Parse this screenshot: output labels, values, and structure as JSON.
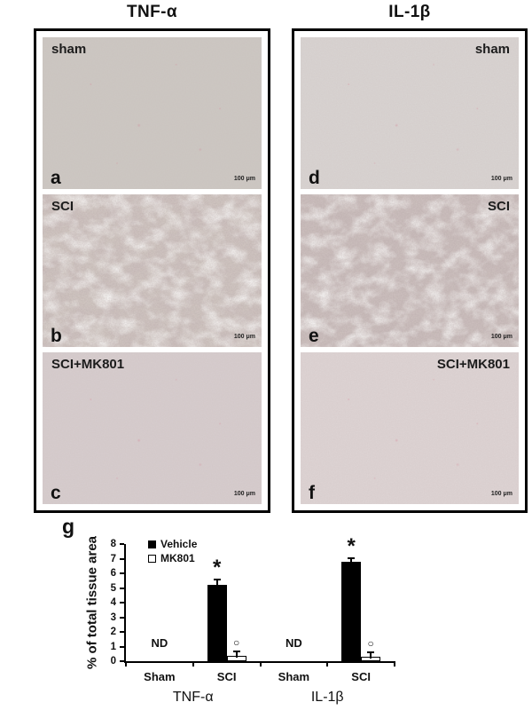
{
  "figure": {
    "columns": [
      {
        "title": "TNF-α",
        "panels": [
          {
            "letter": "a",
            "condition": "sham",
            "scale_bar": "100 μm",
            "texture": "clear",
            "tint": "#ccc7c2",
            "label_side": "left"
          },
          {
            "letter": "b",
            "condition": "SCI",
            "scale_bar": "100 μm",
            "texture": "dense",
            "tint": "#cfc5c0",
            "label_side": "left"
          },
          {
            "letter": "c",
            "condition": "SCI+MK801",
            "scale_bar": "100 μm",
            "texture": "clear",
            "tint": "#d6cccd",
            "label_side": "left"
          }
        ]
      },
      {
        "title": "IL-1β",
        "panels": [
          {
            "letter": "d",
            "condition": "sham",
            "scale_bar": "100 μm",
            "texture": "clear",
            "tint": "#d8d3d1",
            "label_side": "right"
          },
          {
            "letter": "e",
            "condition": "SCI",
            "scale_bar": "100 μm",
            "texture": "dense",
            "tint": "#c8bbba",
            "label_side": "right"
          },
          {
            "letter": "f",
            "condition": "SCI+MK801",
            "scale_bar": "100 μm",
            "texture": "clear",
            "tint": "#ddd3d3",
            "label_side": "right"
          }
        ]
      }
    ]
  },
  "chart_data": {
    "type": "bar",
    "panel_letter": "g",
    "ylabel": "% of total tissue area",
    "ylim": [
      0,
      8
    ],
    "yticks": [
      0,
      1,
      2,
      3,
      4,
      5,
      6,
      7,
      8
    ],
    "categories": [
      "Sham",
      "SCI",
      "Sham",
      "SCI"
    ],
    "group_labels": [
      "TNF-α",
      "IL-1β"
    ],
    "series": [
      {
        "name": "Vehicle",
        "color": "#000000",
        "values": [
          null,
          5.2,
          null,
          6.8
        ],
        "errors": [
          null,
          0.3,
          null,
          0.15
        ],
        "annotations": [
          null,
          "*",
          null,
          "*"
        ]
      },
      {
        "name": "MK801",
        "color": "#ffffff",
        "values": [
          null,
          0.35,
          null,
          0.3
        ],
        "errors": [
          null,
          0.25,
          null,
          0.25
        ],
        "annotations": [
          null,
          "○",
          null,
          "○"
        ]
      }
    ],
    "nd_labels": [
      {
        "category_index": 0,
        "text": "ND"
      },
      {
        "category_index": 2,
        "text": "ND"
      }
    ],
    "legend_position": "top-left",
    "grid": false
  }
}
